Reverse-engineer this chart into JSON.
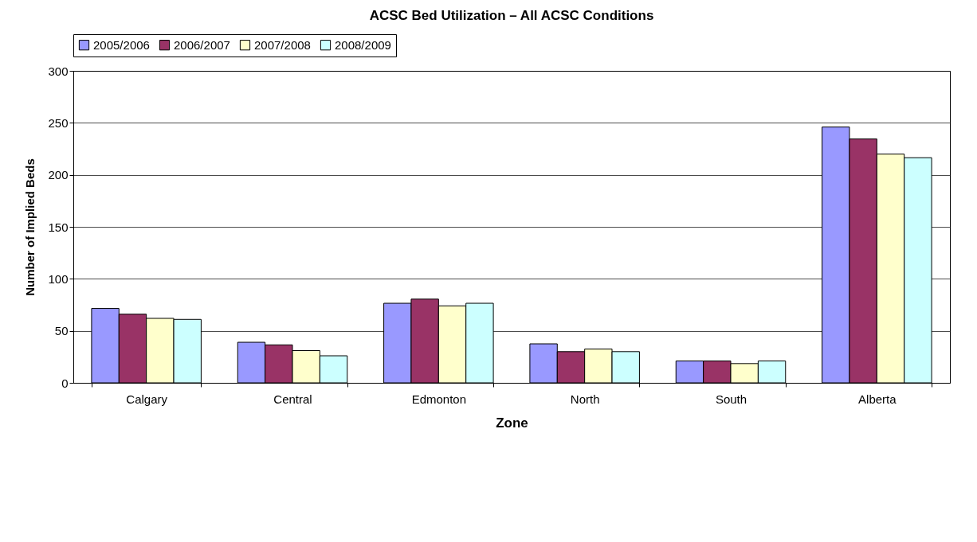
{
  "chart_data": {
    "type": "bar",
    "title": "ACSC Bed Utilization – All ACSC Conditions",
    "xlabel": "Zone",
    "ylabel": "Number of Implied Beds",
    "categories": [
      "Calgary",
      "Central",
      "Edmonton",
      "North",
      "South",
      "Alberta"
    ],
    "series": [
      {
        "name": "2005/2006",
        "color": "#9999ff",
        "values": [
          71.5,
          39,
          76.5,
          37.5,
          21,
          246
        ]
      },
      {
        "name": "2006/2007",
        "color": "#993366",
        "values": [
          66,
          36.5,
          80.5,
          30,
          21,
          234.5
        ]
      },
      {
        "name": "2007/2008",
        "color": "#ffffcc",
        "values": [
          62,
          31,
          74,
          32.5,
          18.5,
          220
        ]
      },
      {
        "name": "2008/2009",
        "color": "#ccffff",
        "values": [
          61,
          26,
          76.5,
          30,
          21,
          216.5
        ]
      }
    ],
    "ylim": [
      0,
      300
    ],
    "yticks": [
      0,
      50,
      100,
      150,
      200,
      250,
      300
    ],
    "grid": "y",
    "legend": "top"
  }
}
